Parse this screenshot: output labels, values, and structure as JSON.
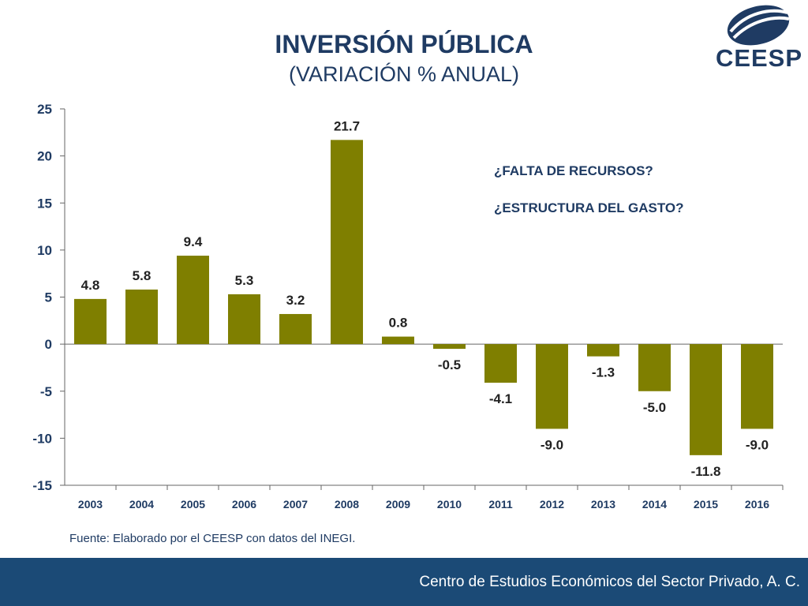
{
  "header": {
    "title": "INVERSIÓN PÚBLICA",
    "subtitle": "(VARIACIÓN % ANUAL)"
  },
  "logo": {
    "text": "CEESP"
  },
  "chart_data": {
    "type": "bar",
    "categories": [
      "2003",
      "2004",
      "2005",
      "2006",
      "2007",
      "2008",
      "2009",
      "2010",
      "2011",
      "2012",
      "2013",
      "2014",
      "2015",
      "2016"
    ],
    "values": [
      4.8,
      5.8,
      9.4,
      5.3,
      3.2,
      21.7,
      0.8,
      -0.5,
      -4.1,
      -9.0,
      -1.3,
      -5.0,
      -11.8,
      -9.0
    ],
    "value_labels": [
      "4.8",
      "5.8",
      "9.4",
      "5.3",
      "3.2",
      "21.7",
      "0.8",
      "-0.5",
      "-4.1",
      "-9.0",
      "-1.3",
      "-5.0",
      "-11.8",
      "-9.0"
    ],
    "ylim": [
      -15,
      25
    ],
    "yticks": [
      -15,
      -10,
      -5,
      0,
      5,
      10,
      15,
      20,
      25
    ],
    "grid": false,
    "bar_color": "#7f7f00",
    "annotations": [
      "¿FALTA DE RECURSOS?",
      "¿ESTRUCTURA DEL GASTO?"
    ],
    "annotation_color": "#1f3b63"
  },
  "source": "Fuente: Elaborado por el CEESP con datos del INEGI.",
  "footer": {
    "text": "Centro de Estudios Económicos del Sector Privado, A. C."
  },
  "colors": {
    "navy": "#1f3b63",
    "footer_bg": "#1b4a76"
  }
}
